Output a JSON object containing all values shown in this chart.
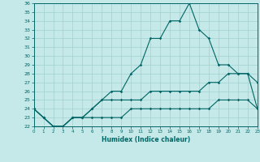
{
  "xlabel": "Humidex (Indice chaleur)",
  "background_color": "#c5e8e8",
  "grid_color": "#a0d0d0",
  "line_color": "#006666",
  "x": [
    0,
    1,
    2,
    3,
    4,
    5,
    6,
    7,
    8,
    9,
    10,
    11,
    12,
    13,
    14,
    15,
    16,
    17,
    18,
    19,
    20,
    21,
    22,
    23
  ],
  "line1": [
    24,
    23,
    22,
    22,
    23,
    23,
    24,
    25,
    26,
    26,
    28,
    29,
    32,
    32,
    34,
    34,
    36,
    33,
    32,
    29,
    29,
    28,
    28,
    27
  ],
  "line2": [
    24,
    23,
    22,
    22,
    23,
    23,
    24,
    25,
    25,
    25,
    25,
    25,
    26,
    26,
    26,
    26,
    26,
    26,
    27,
    27,
    28,
    28,
    28,
    24
  ],
  "line3": [
    24,
    23,
    22,
    22,
    23,
    23,
    23,
    23,
    23,
    23,
    24,
    24,
    24,
    24,
    24,
    24,
    24,
    24,
    24,
    25,
    25,
    25,
    25,
    24
  ],
  "ylim": [
    22,
    36
  ],
  "xlim": [
    0,
    23
  ],
  "yticks": [
    22,
    23,
    24,
    25,
    26,
    27,
    28,
    29,
    30,
    31,
    32,
    33,
    34,
    35,
    36
  ],
  "xticks": [
    0,
    1,
    2,
    3,
    4,
    5,
    6,
    7,
    8,
    9,
    10,
    11,
    12,
    13,
    14,
    15,
    16,
    17,
    18,
    19,
    20,
    21,
    22,
    23
  ]
}
